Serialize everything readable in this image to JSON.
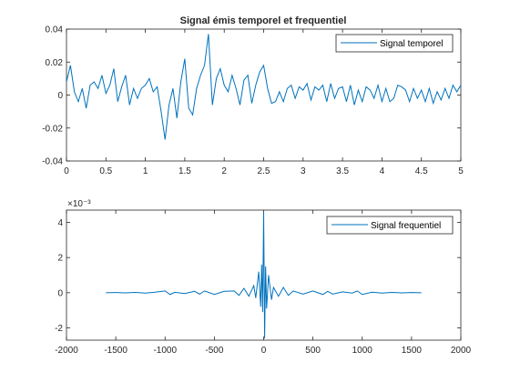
{
  "figure": {
    "background": "#ffffff",
    "line_color": "#0072BD"
  },
  "chart_data": [
    {
      "type": "line",
      "title": "Signal émis temporel et frequentiel",
      "xlabel": "",
      "ylabel": "",
      "xlim": [
        0,
        5
      ],
      "ylim": [
        -0.04,
        0.04
      ],
      "xticks": [
        0,
        0.5,
        1,
        1.5,
        2,
        2.5,
        3,
        3.5,
        4,
        4.5,
        5
      ],
      "yticks": [
        -0.04,
        -0.02,
        0,
        0.02,
        0.04
      ],
      "xtick_labels": [
        "0",
        "0.5",
        "1",
        "1.5",
        "2",
        "2.5",
        "3",
        "3.5",
        "4",
        "4.5",
        "5"
      ],
      "ytick_labels": [
        "-0.04",
        "-0.02",
        "0",
        "0.02",
        "0.04"
      ],
      "legend_position": "top-right",
      "grid": false,
      "series": [
        {
          "name": "Signal temporel",
          "color": "#0072BD",
          "x": [
            0,
            0.05,
            0.1,
            0.15,
            0.2,
            0.25,
            0.3,
            0.35,
            0.4,
            0.45,
            0.5,
            0.55,
            0.6,
            0.65,
            0.7,
            0.75,
            0.8,
            0.85,
            0.9,
            0.95,
            1.0,
            1.05,
            1.1,
            1.15,
            1.2,
            1.25,
            1.3,
            1.35,
            1.4,
            1.45,
            1.5,
            1.55,
            1.6,
            1.65,
            1.7,
            1.75,
            1.8,
            1.85,
            1.9,
            1.95,
            2.0,
            2.05,
            2.1,
            2.15,
            2.2,
            2.25,
            2.3,
            2.35,
            2.4,
            2.45,
            2.5,
            2.55,
            2.6,
            2.65,
            2.7,
            2.75,
            2.8,
            2.85,
            2.9,
            2.95,
            3.0,
            3.05,
            3.1,
            3.15,
            3.2,
            3.25,
            3.3,
            3.35,
            3.4,
            3.45,
            3.5,
            3.55,
            3.6,
            3.65,
            3.7,
            3.75,
            3.8,
            3.85,
            3.9,
            3.95,
            4.0,
            4.05,
            4.1,
            4.15,
            4.2,
            4.25,
            4.3,
            4.35,
            4.4,
            4.45,
            4.5,
            4.55,
            4.6,
            4.65,
            4.7,
            4.75,
            4.8,
            4.85,
            4.9,
            4.95,
            5.0
          ],
          "values": [
            0.008,
            0.018,
            0.002,
            -0.004,
            0.004,
            -0.008,
            0.006,
            0.008,
            0.004,
            0.012,
            0.001,
            0.006,
            0.016,
            -0.004,
            0.005,
            0.012,
            -0.006,
            0.004,
            -0.002,
            0.004,
            0.006,
            0.01,
            0.002,
            0.005,
            -0.01,
            -0.027,
            -0.006,
            0.004,
            -0.014,
            0.008,
            0.022,
            -0.008,
            -0.012,
            0.004,
            0.012,
            0.018,
            0.037,
            -0.006,
            0.01,
            0.016,
            0.006,
            0.002,
            0.012,
            0.004,
            -0.006,
            0.009,
            0.012,
            -0.005,
            0.006,
            0.014,
            0.018,
            0.004,
            -0.005,
            -0.004,
            0.002,
            -0.004,
            0.004,
            0.006,
            -0.002,
            0.005,
            0.003,
            0.007,
            -0.003,
            0.005,
            0.003,
            0.006,
            -0.004,
            0.007,
            -0.002,
            0.004,
            0.005,
            -0.004,
            0.006,
            -0.006,
            0.003,
            -0.004,
            0.005,
            0.003,
            -0.002,
            0.006,
            -0.004,
            0.004,
            -0.004,
            -0.002,
            0.006,
            0.005,
            0.003,
            -0.004,
            0.004,
            -0.002,
            0.003,
            -0.004,
            0.004,
            -0.005,
            0.002,
            -0.003,
            0.004,
            -0.002,
            0.006,
            0.002,
            0.006
          ]
        }
      ]
    },
    {
      "type": "line",
      "title": "",
      "xlabel": "",
      "ylabel": "",
      "xlim": [
        -2000,
        2000
      ],
      "ylim": [
        -0.0027,
        0.0047
      ],
      "xticks": [
        -2000,
        -1500,
        -1000,
        -500,
        0,
        500,
        1000,
        1500,
        2000
      ],
      "yticks": [
        -0.002,
        0,
        0.002,
        0.004
      ],
      "xtick_labels": [
        "-2000",
        "-1500",
        "-1000",
        "-500",
        "0",
        "500",
        "1000",
        "1500",
        "2000"
      ],
      "ytick_labels": [
        "-2",
        "0",
        "2",
        "4"
      ],
      "y_exponent_label": "×10⁻³",
      "legend_position": "top-right",
      "grid": false,
      "series": [
        {
          "name": "Signal frequentiel",
          "color": "#0072BD",
          "x": [
            -1600,
            -1500,
            -1400,
            -1300,
            -1200,
            -1100,
            -1000,
            -950,
            -900,
            -800,
            -700,
            -650,
            -600,
            -500,
            -400,
            -300,
            -250,
            -200,
            -150,
            -100,
            -80,
            -50,
            -30,
            -20,
            -10,
            0,
            10,
            20,
            30,
            50,
            80,
            100,
            150,
            200,
            250,
            300,
            400,
            500,
            600,
            650,
            700,
            800,
            900,
            950,
            1000,
            1100,
            1200,
            1300,
            1400,
            1500,
            1600
          ],
          "values": [
            0,
            1e-05,
            -1e-05,
            2e-05,
            -2e-05,
            3e-05,
            0.0001,
            -0.0001,
            2e-05,
            -5e-05,
            8e-05,
            -8e-05,
            0.0001,
            -0.0001,
            8e-05,
            0.0001,
            -0.00015,
            0.00025,
            -0.0002,
            0.0004,
            -0.0003,
            0.0012,
            -0.0008,
            0.0016,
            -0.0011,
            0.0046,
            -0.0026,
            0.0015,
            -0.0009,
            0.001,
            -0.0004,
            0.0003,
            -0.0002,
            0.0003,
            -0.00015,
            0.0001,
            -8e-05,
            0.0001,
            -0.0001,
            8e-05,
            -8e-05,
            5e-05,
            -2e-05,
            0.0001,
            -0.0001,
            3e-05,
            -2e-05,
            2e-05,
            -1e-05,
            1e-05,
            0
          ]
        }
      ]
    }
  ]
}
